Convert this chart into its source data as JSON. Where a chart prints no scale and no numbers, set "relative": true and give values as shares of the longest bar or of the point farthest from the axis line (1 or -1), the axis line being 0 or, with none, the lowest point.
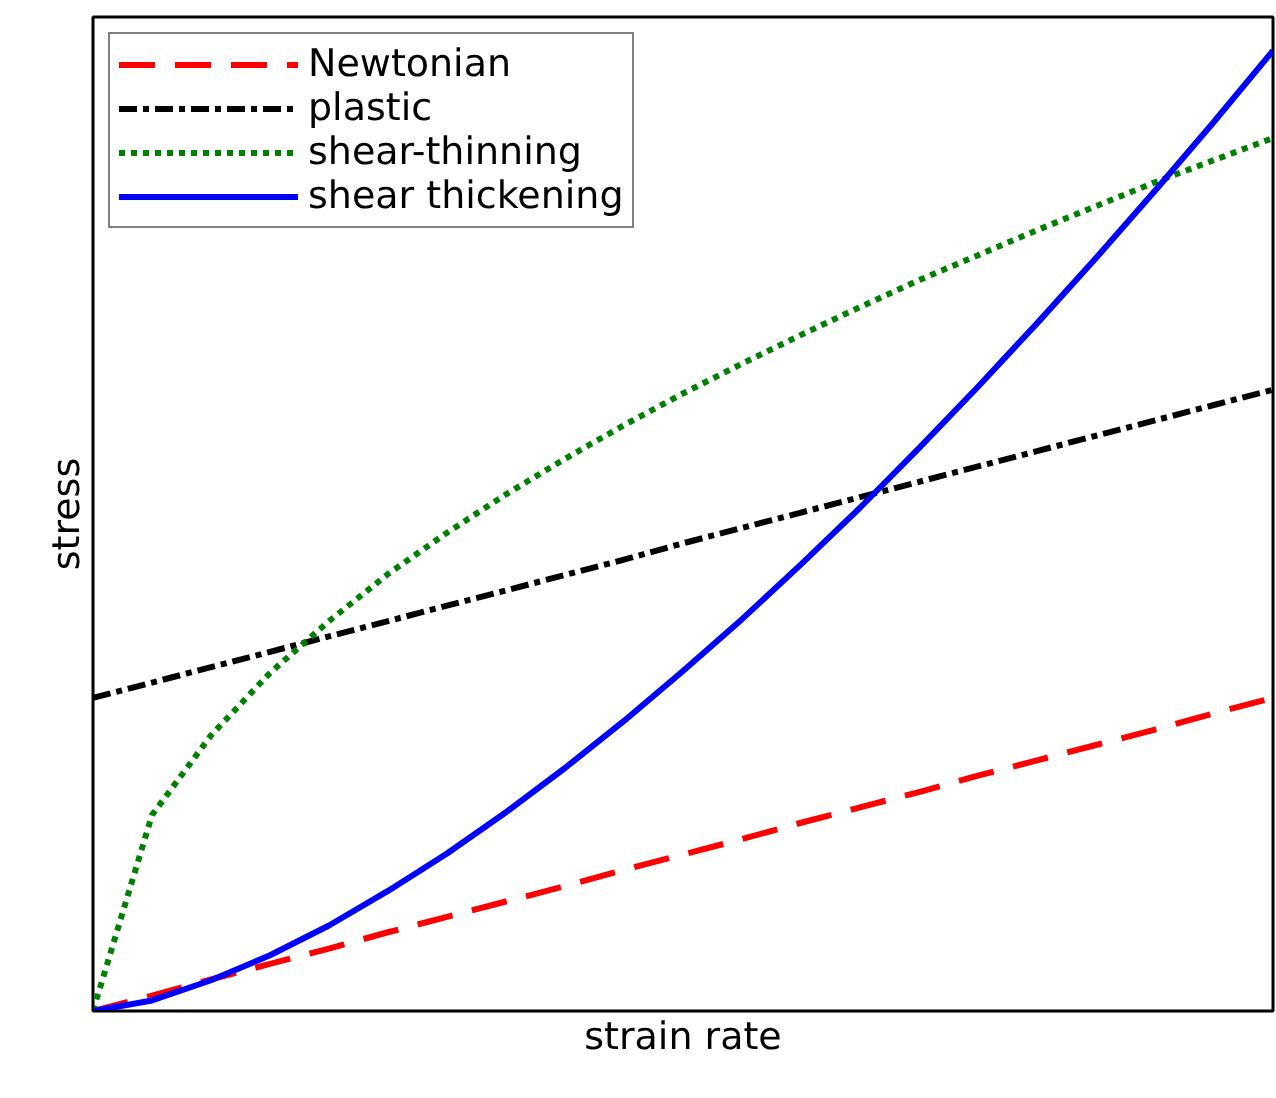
{
  "chart_data": {
    "type": "line",
    "relative": true,
    "xlabel": "strain rate",
    "ylabel": "stress",
    "legend": "top left",
    "marker": "none",
    "categories": [
      null,
      null,
      null,
      null,
      null,
      null,
      null,
      null,
      null,
      null,
      null,
      null,
      null,
      null,
      null,
      null,
      null,
      null,
      null,
      null,
      null
    ],
    "series": [
      {
        "name": "Newtonian",
        "color": "#ff0000",
        "line_style": "dashed",
        "values": [
          0,
          0.016,
          0.033,
          0.049,
          0.065,
          0.082,
          0.098,
          0.114,
          0.13,
          0.147,
          0.163,
          0.179,
          0.196,
          0.212,
          0.228,
          0.245,
          0.261,
          0.277,
          0.293,
          0.31,
          0.326
        ]
      },
      {
        "name": "plastic",
        "color": "#000000",
        "line_style": "dashdot",
        "values": [
          0.326,
          0.342,
          0.358,
          0.374,
          0.39,
          0.406,
          0.422,
          0.438,
          0.454,
          0.47,
          0.487,
          0.503,
          0.519,
          0.535,
          0.551,
          0.567,
          0.583,
          0.599,
          0.615,
          0.631,
          0.647
        ]
      },
      {
        "name": "shear-thinning",
        "color": "#008000",
        "line_style": "dotted",
        "values": [
          0,
          0.204,
          0.287,
          0.352,
          0.406,
          0.455,
          0.498,
          0.538,
          0.575,
          0.61,
          0.643,
          0.674,
          0.704,
          0.733,
          0.761,
          0.787,
          0.813,
          0.838,
          0.863,
          0.886,
          0.909
        ]
      },
      {
        "name": "shear thickening",
        "color": "#0000ff",
        "line_style": "solid",
        "values": [
          0,
          0.011,
          0.032,
          0.058,
          0.089,
          0.125,
          0.164,
          0.207,
          0.253,
          0.302,
          0.354,
          0.408,
          0.465,
          0.524,
          0.586,
          0.65,
          0.716,
          0.784,
          0.854,
          0.926,
          1
        ]
      }
    ]
  }
}
